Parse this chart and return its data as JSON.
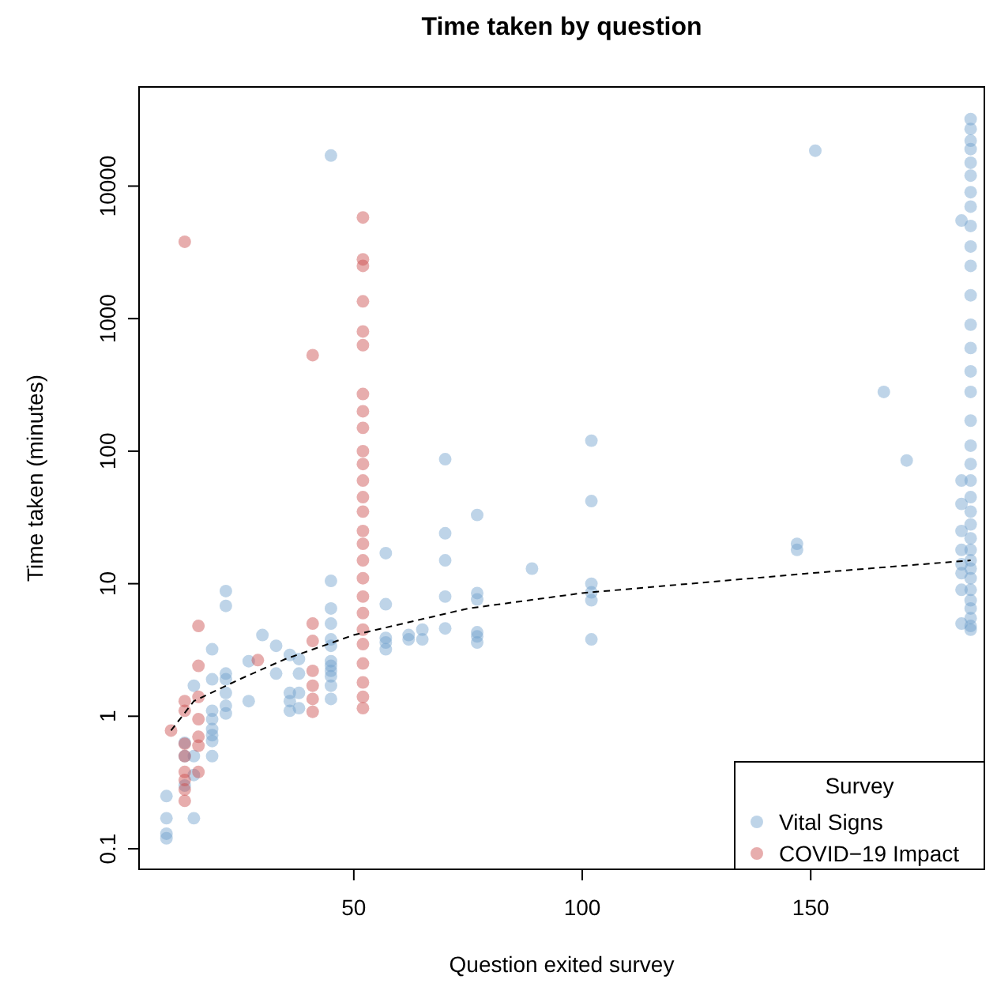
{
  "chart_data": {
    "type": "scatter",
    "title": "Time taken by question",
    "xlabel": "Question exited survey",
    "ylabel": "Time taken (minutes)",
    "legend_title": "Survey",
    "legend": "bottom right",
    "log": "y",
    "marker": "circle",
    "grid": false,
    "xlim": [
      3,
      188
    ],
    "xticks": [
      50,
      100,
      150
    ],
    "ylim": [
      0.07,
      56000
    ],
    "yticks": [
      0.1,
      1,
      10,
      100,
      1000,
      10000
    ],
    "series": [
      {
        "name": "Vital Signs",
        "color": "#6f9fcb",
        "x": [
          9,
          9,
          9,
          9,
          13,
          13,
          13,
          15,
          15,
          15,
          15,
          19,
          19,
          19,
          19,
          19,
          19,
          19,
          19,
          22,
          22,
          22,
          22,
          22,
          22,
          22,
          27,
          27,
          30,
          33,
          33,
          36,
          36,
          36,
          36,
          38,
          38,
          38,
          38,
          45,
          45,
          45,
          45,
          45,
          45,
          45,
          45,
          45,
          45,
          45,
          45,
          57,
          57,
          57,
          57,
          57,
          62,
          62,
          65,
          65,
          70,
          70,
          70,
          70,
          70,
          77,
          77,
          77,
          77,
          77,
          77,
          89,
          102,
          102,
          102,
          102,
          102,
          102,
          147,
          147,
          151,
          166,
          171,
          183,
          183,
          183,
          183,
          183,
          183,
          183,
          183,
          183,
          185,
          185,
          185,
          185,
          185,
          185,
          185,
          185,
          185,
          185,
          185,
          185,
          185,
          185,
          185,
          185,
          185,
          185,
          185,
          185,
          185,
          185,
          185,
          185,
          185,
          185,
          185,
          185,
          185,
          185,
          185,
          185,
          185,
          185
        ],
        "values": [
          0.25,
          0.17,
          0.13,
          0.12,
          0.63,
          0.5,
          0.3,
          1.7,
          0.17,
          0.36,
          0.5,
          3.2,
          1.9,
          1.1,
          0.95,
          0.8,
          0.72,
          0.65,
          0.5,
          8.8,
          6.8,
          2.1,
          1.9,
          1.5,
          1.2,
          1.05,
          2.6,
          1.3,
          4.1,
          3.4,
          2.1,
          2.9,
          1.5,
          1.1,
          1.3,
          2.7,
          2.1,
          1.5,
          1.15,
          10.5,
          6.5,
          5,
          3.8,
          3.4,
          2.6,
          2.4,
          2.2,
          2,
          1.7,
          1.35,
          17000,
          17,
          7,
          3.9,
          3.6,
          3.2,
          4.1,
          3.8,
          4.5,
          3.8,
          87,
          24,
          15,
          8,
          4.6,
          33,
          8.5,
          7.6,
          4.3,
          4,
          3.6,
          13,
          120,
          42,
          10,
          8.6,
          7.5,
          3.8,
          20,
          18,
          18500,
          280,
          85,
          5500,
          60,
          40,
          25,
          18,
          14,
          12,
          9,
          5,
          32000,
          27000,
          22000,
          19000,
          15000,
          12000,
          9000,
          7000,
          5000,
          3500,
          2500,
          1500,
          900,
          600,
          400,
          280,
          170,
          110,
          80,
          60,
          45,
          35,
          28,
          22,
          18,
          15,
          13,
          11,
          9,
          7.5,
          6.5,
          5.5,
          4.8,
          4.5
        ]
      },
      {
        "name": "COVID−19 Impact",
        "color": "#c94a4a",
        "x": [
          10,
          13,
          13,
          13,
          13,
          13,
          13,
          13,
          13,
          13,
          16,
          16,
          16,
          16,
          16,
          16,
          16,
          29,
          41,
          41,
          41,
          41,
          41,
          41,
          41,
          52,
          52,
          52,
          52,
          52,
          52,
          52,
          52,
          52,
          52,
          52,
          52,
          52,
          52,
          52,
          52,
          52,
          52,
          52,
          52,
          52,
          52,
          52,
          52,
          52,
          52
        ],
        "values": [
          0.78,
          3800,
          1.3,
          1.1,
          0.62,
          0.5,
          0.38,
          0.33,
          0.28,
          0.23,
          4.8,
          2.4,
          1.4,
          0.95,
          0.7,
          0.6,
          0.38,
          2.65,
          530,
          5,
          3.7,
          2.2,
          1.7,
          1.35,
          1.08,
          5800,
          2800,
          2500,
          1350,
          800,
          630,
          270,
          200,
          150,
          100,
          80,
          60,
          45,
          35,
          25,
          20,
          15,
          11,
          8,
          6,
          4.5,
          3.5,
          2.5,
          1.8,
          1.4,
          1.15
        ]
      },
      {
        "type": "line",
        "color": "#000000",
        "line_style": "dashed",
        "marker": "none",
        "x": [
          10,
          15,
          25,
          35,
          50,
          75,
          100,
          150,
          185
        ],
        "values": [
          0.78,
          1.3,
          1.9,
          2.7,
          4.1,
          6.5,
          8.5,
          12,
          15
        ]
      }
    ]
  }
}
